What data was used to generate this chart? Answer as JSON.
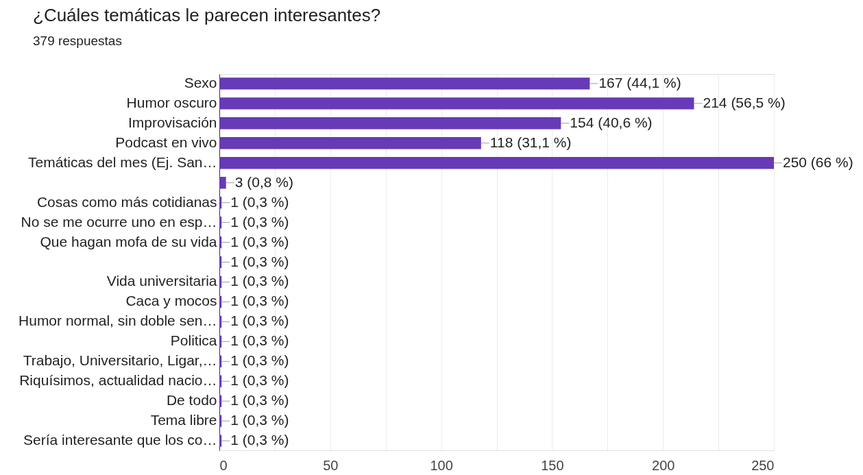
{
  "chart_data": {
    "type": "bar",
    "orientation": "horizontal",
    "title": "¿Cuáles temáticas le parecen interesantes?",
    "subtitle": "379 respuestas",
    "categories": [
      "Sexo",
      "Humor oscuro",
      "Improvisación",
      "Podcast en vivo",
      "Temáticas del mes (Ej. San…",
      null,
      "Cosas como más cotidianas",
      "No se me ocurre uno en esp…",
      "Que hagan mofa de su vida",
      null,
      "Vida universitaria",
      "Caca y mocos",
      "Humor normal, sin doble sen…",
      "Politica",
      "Trabajo, Universitario, Ligar,…",
      "Riquísimos, actualidad nacio…",
      "De todo",
      "Tema libre",
      "Sería interesante que los co…"
    ],
    "values": [
      167,
      214,
      154,
      118,
      250,
      3,
      1,
      1,
      1,
      1,
      1,
      1,
      1,
      1,
      1,
      1,
      1,
      1,
      1
    ],
    "value_labels": [
      "167 (44,1 %)",
      "214 (56,5 %)",
      "154 (40,6 %)",
      "118 (31,1 %)",
      "250 (66 %)",
      "3 (0,8 %)",
      "1 (0,3 %)",
      "1 (0,3 %)",
      "1 (0,3 %)",
      "1 (0,3 %)",
      "1 (0,3 %)",
      "1 (0,3 %)",
      "1 (0,3 %)",
      "1 (0,3 %)",
      "1 (0,3 %)",
      "1 (0,3 %)",
      "1 (0,3 %)",
      "1 (0,3 %)",
      "1 (0,3 %)"
    ],
    "color": "#673ab7",
    "xlim": [
      0,
      250
    ],
    "xticks": [
      0,
      {
        "value": 25,
        "label": null
      },
      50,
      {
        "value": 75,
        "label": null
      },
      100,
      {
        "value": 125,
        "label": null
      },
      150,
      {
        "value": 175,
        "label": null
      },
      200,
      {
        "value": 225,
        "label": null
      },
      250
    ],
    "grid": "x"
  }
}
